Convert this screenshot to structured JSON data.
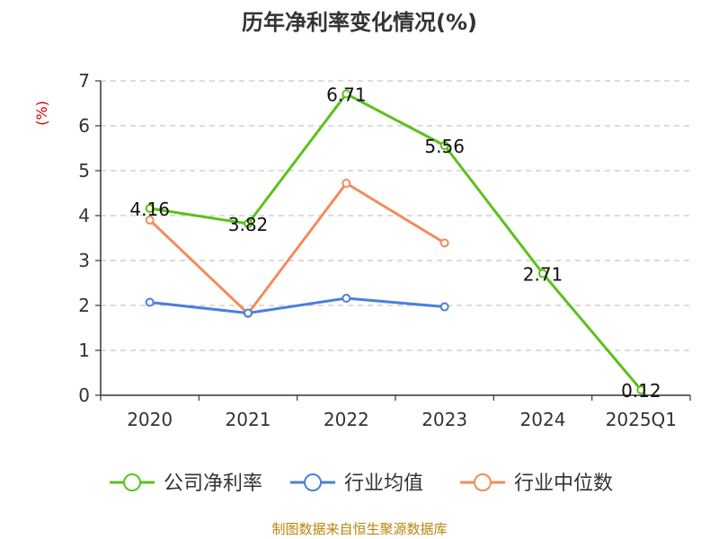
{
  "chart_data": {
    "type": "line",
    "title": "历年净利率变化情况(%)",
    "ylabel": "(%)",
    "xlabel": "",
    "categories": [
      "2020",
      "2021",
      "2022",
      "2023",
      "2024",
      "2025Q1"
    ],
    "ylim": [
      0,
      7
    ],
    "yticks": [
      "0",
      "1",
      "2",
      "3",
      "4",
      "5",
      "6",
      "7"
    ],
    "grid": true,
    "legend_position": "bottom",
    "series": [
      {
        "name": "公司净利率",
        "color": "#5ac21a",
        "values": [
          4.16,
          3.82,
          6.71,
          5.56,
          2.71,
          0.12
        ],
        "labels": [
          "4.16",
          "3.82",
          "6.71",
          "5.56",
          "2.71",
          "0.12"
        ]
      },
      {
        "name": "行业均值",
        "color": "#4a7fdb",
        "values": [
          2.07,
          1.83,
          2.16,
          1.97,
          null,
          null
        ]
      },
      {
        "name": "行业中位数",
        "color": "#f28c5a",
        "values": [
          3.9,
          1.82,
          4.72,
          3.39,
          null,
          null
        ]
      }
    ],
    "source": "制图数据来自恒生聚源数据库"
  }
}
